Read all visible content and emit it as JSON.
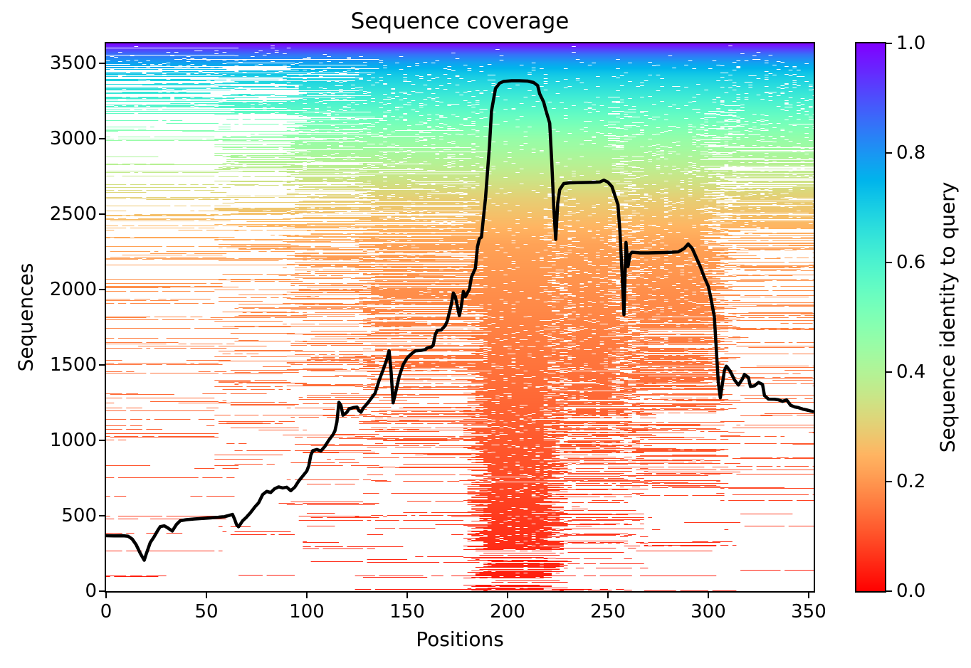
{
  "title": "Sequence coverage",
  "x_axis": {
    "label": "Positions",
    "ticks": [
      0,
      50,
      100,
      150,
      200,
      250,
      300,
      350
    ]
  },
  "y_axis": {
    "label": "Sequences",
    "ticks": [
      0,
      500,
      1000,
      1500,
      2000,
      2500,
      3000,
      3500
    ]
  },
  "colorbar": {
    "label": "Sequence identity to query",
    "tick_labels": [
      "0.0",
      "0.2",
      "0.4",
      "0.6",
      "0.8",
      "1.0"
    ],
    "tick_values": [
      0,
      0.2,
      0.4,
      0.6,
      0.8,
      1.0
    ],
    "colormap": "rainbow_r",
    "min_color": "#ff0000",
    "max_color": "#8000ff"
  },
  "chart_data": {
    "type": "heatmap",
    "subtype": "msa-coverage-with-line",
    "title": "Sequence coverage",
    "xlabel": "Positions",
    "ylabel": "Sequences",
    "x_range": [
      0,
      352.5
    ],
    "y_range": [
      0,
      3630
    ],
    "n_sequences": 3630,
    "n_positions": 353,
    "line_color": "#000000",
    "background_color": "#ffffff",
    "coverage_line": [
      [
        0,
        368
      ],
      [
        4,
        367
      ],
      [
        8,
        368
      ],
      [
        11,
        364
      ],
      [
        13,
        346
      ],
      [
        15,
        308
      ],
      [
        17,
        252
      ],
      [
        19,
        205
      ],
      [
        20,
        246
      ],
      [
        22,
        322
      ],
      [
        24,
        362
      ],
      [
        26,
        408
      ],
      [
        27,
        428
      ],
      [
        29,
        433
      ],
      [
        31,
        417
      ],
      [
        33,
        399
      ],
      [
        35,
        441
      ],
      [
        37,
        467
      ],
      [
        40,
        474
      ],
      [
        44,
        478
      ],
      [
        48,
        482
      ],
      [
        52,
        486
      ],
      [
        56,
        490
      ],
      [
        59,
        494
      ],
      [
        61,
        501
      ],
      [
        63,
        509
      ],
      [
        64,
        478
      ],
      [
        65,
        441
      ],
      [
        66,
        427
      ],
      [
        68,
        466
      ],
      [
        70,
        491
      ],
      [
        72,
        521
      ],
      [
        74,
        556
      ],
      [
        76,
        586
      ],
      [
        78,
        640
      ],
      [
        80,
        661
      ],
      [
        82,
        654
      ],
      [
        84,
        679
      ],
      [
        86,
        691
      ],
      [
        88,
        684
      ],
      [
        90,
        689
      ],
      [
        92,
        666
      ],
      [
        94,
        689
      ],
      [
        96,
        731
      ],
      [
        98,
        763
      ],
      [
        100,
        796
      ],
      [
        101,
        832
      ],
      [
        102,
        901
      ],
      [
        103,
        931
      ],
      [
        105,
        939
      ],
      [
        107,
        929
      ],
      [
        109,
        959
      ],
      [
        111,
        1001
      ],
      [
        113,
        1036
      ],
      [
        114,
        1062
      ],
      [
        115,
        1122
      ],
      [
        116,
        1252
      ],
      [
        117,
        1232
      ],
      [
        118,
        1166
      ],
      [
        120,
        1186
      ],
      [
        121,
        1208
      ],
      [
        123,
        1216
      ],
      [
        125,
        1220
      ],
      [
        126,
        1196
      ],
      [
        127,
        1186
      ],
      [
        128,
        1211
      ],
      [
        130,
        1242
      ],
      [
        132,
        1276
      ],
      [
        134,
        1311
      ],
      [
        136,
        1396
      ],
      [
        138,
        1466
      ],
      [
        140,
        1542
      ],
      [
        141,
        1593
      ],
      [
        142,
        1452
      ],
      [
        143,
        1248
      ],
      [
        144,
        1301
      ],
      [
        146,
        1421
      ],
      [
        148,
        1501
      ],
      [
        150,
        1546
      ],
      [
        152,
        1571
      ],
      [
        154,
        1592
      ],
      [
        157,
        1596
      ],
      [
        159,
        1601
      ],
      [
        160,
        1612
      ],
      [
        162,
        1618
      ],
      [
        163,
        1631
      ],
      [
        164,
        1701
      ],
      [
        165,
        1728
      ],
      [
        167,
        1731
      ],
      [
        169,
        1761
      ],
      [
        170,
        1791
      ],
      [
        172,
        1901
      ],
      [
        173,
        1976
      ],
      [
        174,
        1951
      ],
      [
        176,
        1826
      ],
      [
        177,
        1891
      ],
      [
        178,
        1986
      ],
      [
        179,
        1952
      ],
      [
        181,
        2001
      ],
      [
        182,
        2081
      ],
      [
        184,
        2141
      ],
      [
        185,
        2281
      ],
      [
        186,
        2336
      ],
      [
        187,
        2346
      ],
      [
        188,
        2476
      ],
      [
        189,
        2601
      ],
      [
        191,
        2951
      ],
      [
        192,
        3181
      ],
      [
        194,
        3331
      ],
      [
        196,
        3366
      ],
      [
        198,
        3378
      ],
      [
        202,
        3382
      ],
      [
        206,
        3382
      ],
      [
        210,
        3380
      ],
      [
        213,
        3371
      ],
      [
        215,
        3351
      ],
      [
        216,
        3296
      ],
      [
        218,
        3241
      ],
      [
        219,
        3191
      ],
      [
        221,
        3101
      ],
      [
        222,
        2851
      ],
      [
        223,
        2551
      ],
      [
        224,
        2331
      ],
      [
        225,
        2571
      ],
      [
        226,
        2661
      ],
      [
        228,
        2701
      ],
      [
        231,
        2706
      ],
      [
        235,
        2707
      ],
      [
        239,
        2708
      ],
      [
        243,
        2710
      ],
      [
        246,
        2712
      ],
      [
        248,
        2724
      ],
      [
        250,
        2711
      ],
      [
        252,
        2681
      ],
      [
        253,
        2641
      ],
      [
        255,
        2561
      ],
      [
        256,
        2381
      ],
      [
        257,
        2121
      ],
      [
        258,
        1831
      ],
      [
        259,
        2311
      ],
      [
        260,
        2151
      ],
      [
        261,
        2231
      ],
      [
        262,
        2246
      ],
      [
        266,
        2242
      ],
      [
        270,
        2242
      ],
      [
        274,
        2243
      ],
      [
        278,
        2244
      ],
      [
        282,
        2246
      ],
      [
        285,
        2249
      ],
      [
        288,
        2271
      ],
      [
        290,
        2301
      ],
      [
        292,
        2271
      ],
      [
        294,
        2211
      ],
      [
        296,
        2151
      ],
      [
        298,
        2081
      ],
      [
        300,
        2021
      ],
      [
        301,
        1961
      ],
      [
        303,
        1821
      ],
      [
        304,
        1601
      ],
      [
        305,
        1381
      ],
      [
        306,
        1281
      ],
      [
        308,
        1461
      ],
      [
        309,
        1491
      ],
      [
        311,
        1456
      ],
      [
        313,
        1401
      ],
      [
        315,
        1366
      ],
      [
        317,
        1406
      ],
      [
        318,
        1436
      ],
      [
        320,
        1416
      ],
      [
        321,
        1356
      ],
      [
        323,
        1361
      ],
      [
        325,
        1383
      ],
      [
        327,
        1371
      ],
      [
        328,
        1296
      ],
      [
        330,
        1273
      ],
      [
        333,
        1272
      ],
      [
        335,
        1268
      ],
      [
        337,
        1258
      ],
      [
        339,
        1268
      ],
      [
        341,
        1232
      ],
      [
        343,
        1221
      ],
      [
        345,
        1216
      ],
      [
        347,
        1207
      ],
      [
        349,
        1201
      ],
      [
        352,
        1191
      ]
    ],
    "identity_profile": [
      [
        0,
        0.03
      ],
      [
        800,
        0.1
      ],
      [
        1500,
        0.15
      ],
      [
        2000,
        0.19
      ],
      [
        2300,
        0.22
      ],
      [
        2600,
        0.3
      ],
      [
        2800,
        0.38
      ],
      [
        3000,
        0.46
      ],
      [
        3150,
        0.55
      ],
      [
        3300,
        0.64
      ],
      [
        3420,
        0.71
      ],
      [
        3500,
        0.78
      ],
      [
        3560,
        0.86
      ],
      [
        3630,
        1.0
      ]
    ],
    "density_grid": {
      "pos_edges": [
        0,
        60,
        95,
        130,
        185,
        225,
        265,
        310,
        352.5
      ],
      "row_edges": [
        0,
        300,
        800,
        1300,
        1800,
        2100,
        2400,
        2900,
        3150,
        3480,
        3560,
        3630
      ],
      "values": [
        [
          0.02,
          0.02,
          0.03,
          0.06,
          0.55,
          0.1,
          0.03,
          0.01
        ],
        [
          0.05,
          0.05,
          0.08,
          0.12,
          0.75,
          0.28,
          0.12,
          0.03
        ],
        [
          0.08,
          0.08,
          0.15,
          0.25,
          0.85,
          0.55,
          0.3,
          0.08
        ],
        [
          0.1,
          0.12,
          0.25,
          0.4,
          0.9,
          0.75,
          0.55,
          0.15
        ],
        [
          0.15,
          0.2,
          0.4,
          0.55,
          0.92,
          0.85,
          0.75,
          0.25
        ],
        [
          0.18,
          0.25,
          0.45,
          0.6,
          0.95,
          0.9,
          0.85,
          0.35
        ],
        [
          0.15,
          0.3,
          0.5,
          0.65,
          0.96,
          0.92,
          0.88,
          0.55
        ],
        [
          0.12,
          0.35,
          0.55,
          0.75,
          0.96,
          0.95,
          0.9,
          0.78
        ],
        [
          0.35,
          0.45,
          0.65,
          0.85,
          0.97,
          0.97,
          0.95,
          0.88
        ],
        [
          0.6,
          0.75,
          0.88,
          0.95,
          1.0,
          1.0,
          1.0,
          0.95
        ],
        [
          1.0,
          1.0,
          1.0,
          1.0,
          1.0,
          1.0,
          1.0,
          1.0
        ]
      ]
    },
    "white_streaks": [
      {
        "pos": [
          224,
          228
        ],
        "max_row": 2650,
        "factor": 0.5
      },
      {
        "pos": [
          256,
          261
        ],
        "max_row": 3250,
        "factor": 0.45
      },
      {
        "pos": [
          303,
          312
        ],
        "max_row": 3250,
        "factor": 0.55
      },
      {
        "pos": [
          16,
          21
        ],
        "max_row": 450,
        "factor": 0.5
      },
      {
        "pos": [
          63,
          67
        ],
        "max_row": 560,
        "factor": 0.5
      },
      {
        "pos": [
          139,
          144
        ],
        "max_row": 1560,
        "factor": 0.65
      }
    ]
  }
}
